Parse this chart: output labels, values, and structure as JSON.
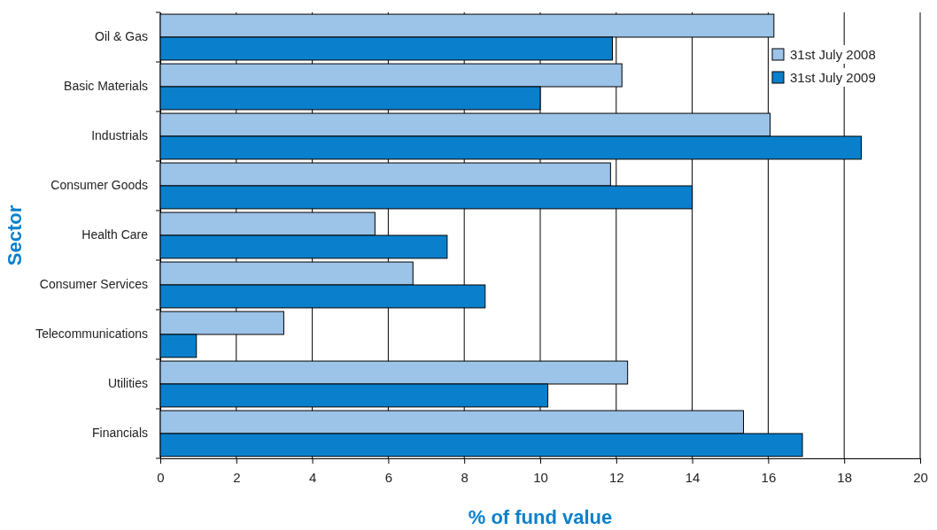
{
  "chart_data": {
    "type": "bar",
    "orientation": "horizontal",
    "xlabel": "% of fund value",
    "ylabel": "Sector",
    "categories": [
      "Oil & Gas",
      "Basic Materials",
      "Industrials",
      "Consumer Goods",
      "Health Care",
      "Consumer Services",
      "Telecommunications",
      "Utilities",
      "Financials"
    ],
    "series": [
      {
        "name": "31st July 2008",
        "color": "#9cc3e8",
        "values": [
          16.15,
          12.15,
          16.05,
          11.85,
          5.65,
          6.65,
          3.25,
          12.3,
          15.35
        ]
      },
      {
        "name": "31st July 2009",
        "color": "#0a80cc",
        "values": [
          11.9,
          10.0,
          18.45,
          14.0,
          7.55,
          8.55,
          0.95,
          10.2,
          16.9
        ]
      }
    ],
    "xlim": [
      0,
      20
    ],
    "xticks": [
      0,
      2,
      4,
      6,
      8,
      10,
      12,
      14,
      16,
      18,
      20
    ],
    "grid": "x",
    "legend": "top right"
  }
}
